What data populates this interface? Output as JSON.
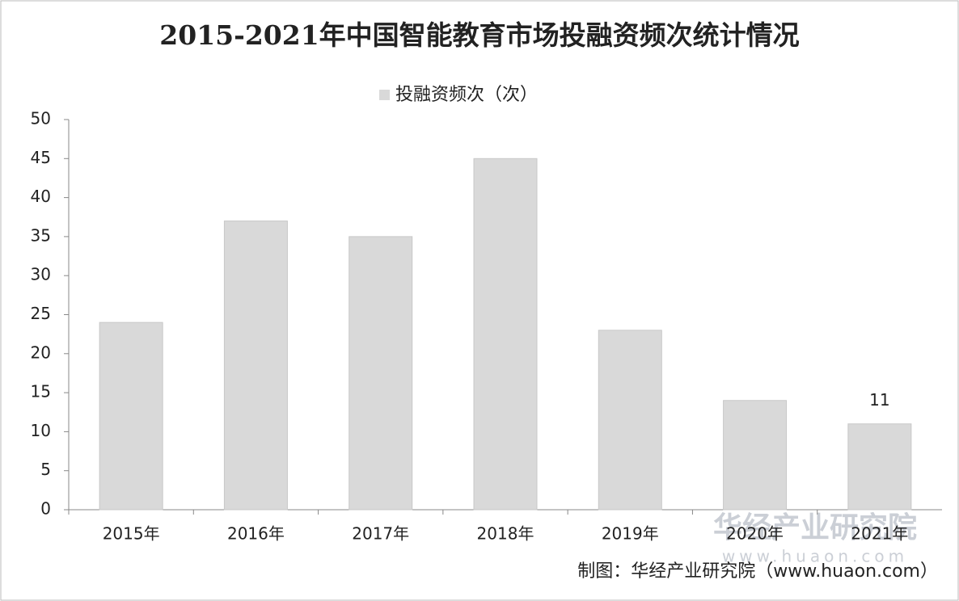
{
  "chart_data": {
    "type": "bar",
    "title": "2015-2021年中国智能教育市场投融资频次统计情况",
    "series": [
      {
        "name": "投融资频次（次）",
        "color": "#d9d9d9",
        "values": [
          24,
          37,
          35,
          45,
          23,
          14,
          11
        ],
        "show_value_label": [
          false,
          false,
          false,
          false,
          false,
          false,
          true
        ]
      }
    ],
    "categories": [
      "2015年",
      "2016年",
      "2017年",
      "2018年",
      "2019年",
      "2020年",
      "2021年"
    ],
    "ylim": [
      0,
      50
    ],
    "yticks": [
      0,
      5,
      10,
      15,
      20,
      25,
      30,
      35,
      40,
      45,
      50
    ],
    "grid": false,
    "source": "制图：华经产业研究院（www.huaon.com）",
    "watermark": {
      "name": "华经产业研究院",
      "url": "www.huaon.com"
    }
  }
}
